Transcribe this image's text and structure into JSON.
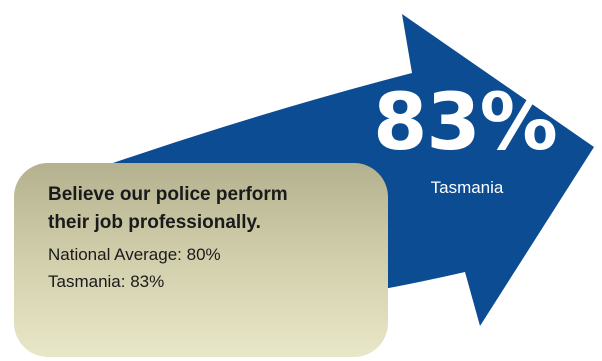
{
  "headline_value": "83%",
  "headline_label": "Tasmania",
  "info_box": {
    "heading": "Believe our police perform their job professionally.",
    "national_average": "National Average: 80%",
    "tasmania": "Tasmania: 83%"
  },
  "colors": {
    "arrow": "#0c4c92",
    "box_top": "#b4b18f",
    "box_bottom": "#e8e7c7",
    "text_light": "#ffffff",
    "text_dark": "#1a1a1a"
  }
}
